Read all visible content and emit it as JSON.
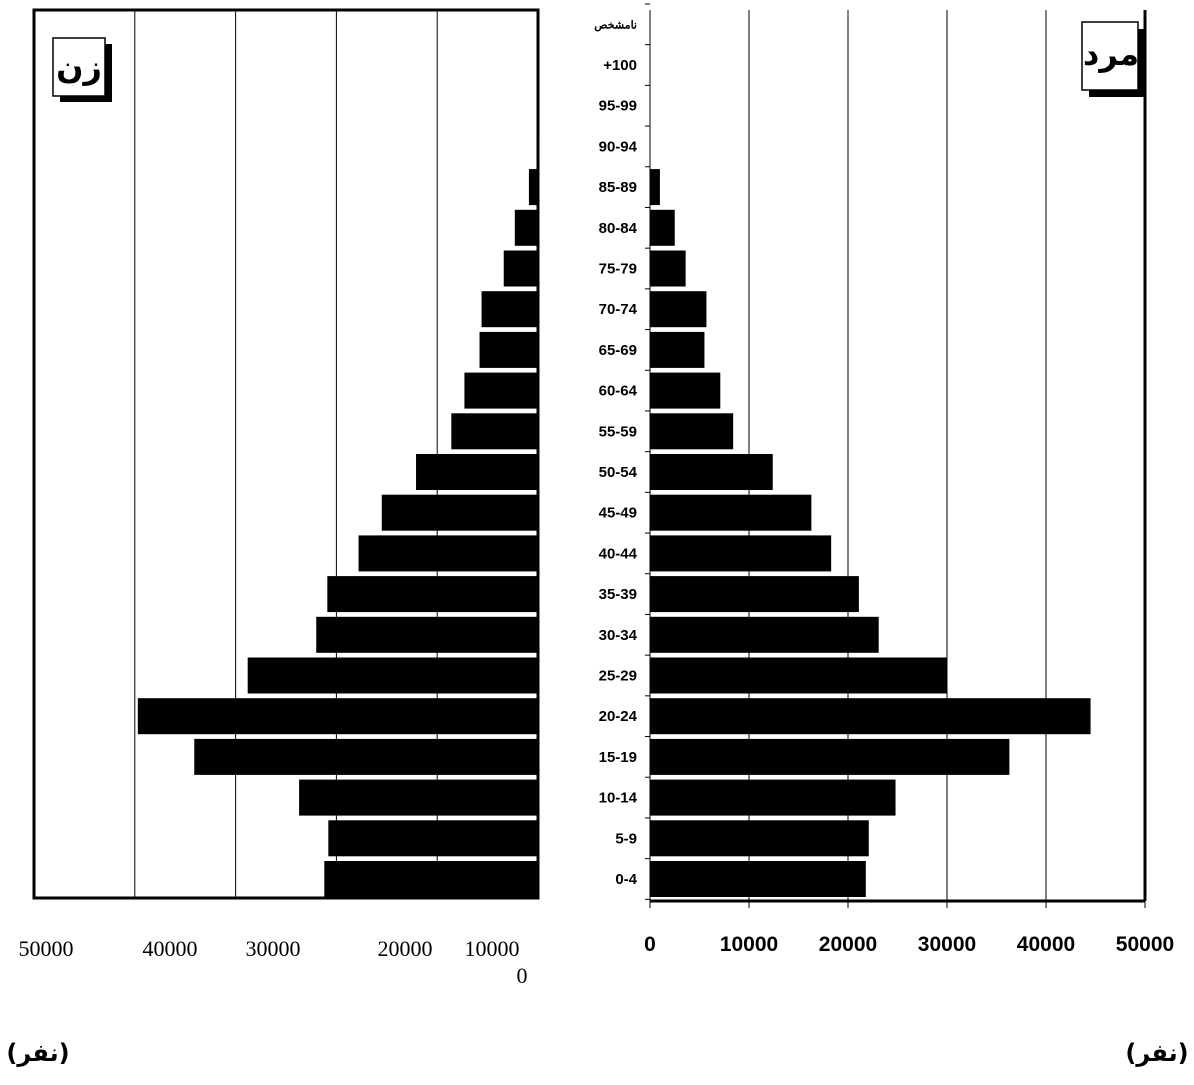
{
  "chart_data": {
    "type": "bar",
    "orientation": "horizontal",
    "categories": [
      "0-4",
      "5-9",
      "10-14",
      "15-19",
      "20-24",
      "25-29",
      "30-34",
      "35-39",
      "40-44",
      "45-49",
      "50-54",
      "55-59",
      "60-64",
      "65-69",
      "70-74",
      "75-79",
      "80-84",
      "85-89",
      "90-94",
      "95-99",
      "+100",
      "نامشخص"
    ],
    "series": [
      {
        "name": "زن",
        "values": [
          21200,
          20800,
          23700,
          34100,
          39700,
          28800,
          22000,
          20900,
          17800,
          15500,
          12100,
          8600,
          7300,
          5800,
          5600,
          3400,
          2300,
          900,
          150,
          0,
          0,
          0
        ]
      },
      {
        "name": "مرد",
        "values": [
          21800,
          22100,
          24800,
          36300,
          44500,
          30000,
          23100,
          21100,
          18300,
          16300,
          12400,
          8400,
          7100,
          5500,
          5700,
          3600,
          2500,
          1000,
          0,
          0,
          0,
          0
        ]
      }
    ],
    "female_axis": {
      "ticks": [
        "50000",
        "40000",
        "30000",
        "20000",
        "10000",
        "0"
      ],
      "xlim": [
        0,
        40000
      ]
    },
    "male_axis": {
      "ticks": [
        "0",
        "10000",
        "20000",
        "30000",
        "40000",
        "50000"
      ],
      "xlim": [
        0,
        50000
      ]
    },
    "female_label": "زن",
    "male_label": "مرد",
    "unit_left": "(نفر)",
    "unit_right": "(نفر)",
    "grid": true
  },
  "colors": {
    "bar": "#000000",
    "grid": "#000000",
    "background": "#ffffff"
  }
}
